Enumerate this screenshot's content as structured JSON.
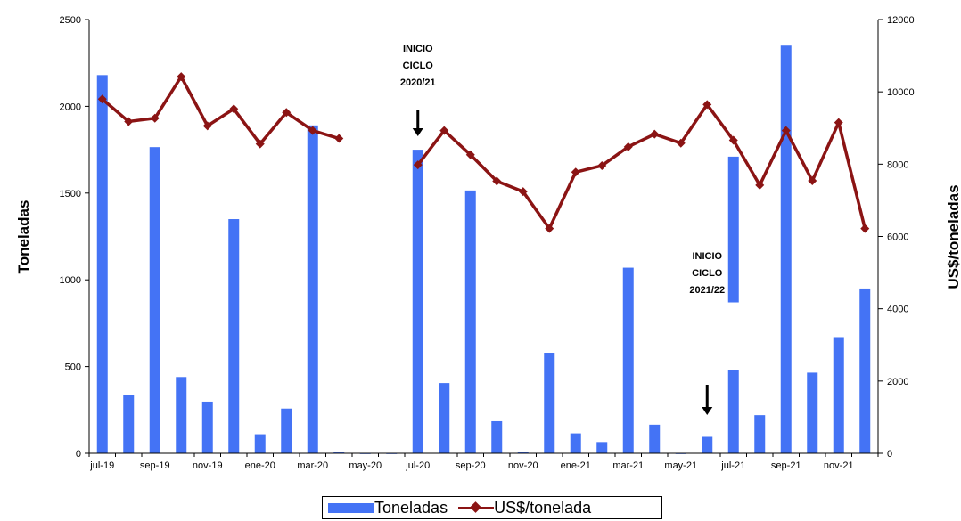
{
  "chart_data": {
    "type": "bar",
    "categories": [
      "jul-19",
      "ago-19",
      "sep-19",
      "oct-19",
      "nov-19",
      "dic-19",
      "ene-20",
      "feb-20",
      "mar-20",
      "abr-20",
      "may-20",
      "jun-20",
      "jul-20",
      "ago-20",
      "sep-20",
      "oct-20",
      "nov-20",
      "dic-20",
      "ene-21",
      "feb-21",
      "mar-21",
      "abr-21",
      "may-21",
      "jun-21",
      "jul-21",
      "ago-21",
      "sep-21",
      "oct-21",
      "nov-21",
      "dic-21"
    ],
    "x_tick_labels": [
      "jul-19",
      "sep-19",
      "nov-19",
      "ene-20",
      "mar-20",
      "may-20",
      "jul-20",
      "sep-20",
      "nov-20",
      "ene-21",
      "mar-21",
      "may-21",
      "jul-21",
      "sep-21",
      "nov-21"
    ],
    "series": [
      {
        "name": "Toneladas",
        "type": "bar",
        "axis": "left",
        "color": "#4473f5",
        "values": [
          2180,
          335,
          1765,
          440,
          298,
          1350,
          110,
          258,
          1890,
          5,
          0,
          0,
          1750,
          405,
          1515,
          185,
          10,
          580,
          115,
          65,
          1070,
          165,
          0,
          95,
          480,
          220,
          2350,
          465,
          670,
          950
        ],
        "floating_segment": {
          "category": "jul-21",
          "from": 870,
          "to": 1710
        }
      },
      {
        "name": "US$/tonelada",
        "type": "line",
        "axis": "right",
        "color": "#8b1414",
        "values": [
          9800,
          9180,
          9270,
          10420,
          9060,
          9530,
          8560,
          9430,
          8930,
          8710,
          null,
          null,
          7980,
          8930,
          8260,
          7530,
          7240,
          6220,
          7780,
          7960,
          8480,
          8830,
          8580,
          9650,
          8660,
          7420,
          8930,
          7540,
          9150,
          6220
        ]
      }
    ],
    "y_left": {
      "label": "Toneladas",
      "ylim": [
        0,
        2500
      ],
      "ticks": [
        0,
        500,
        1000,
        1500,
        2000,
        2500
      ]
    },
    "y_right": {
      "label": "US$/toneladas",
      "ylim": [
        0,
        12000
      ],
      "ticks": [
        0,
        2000,
        4000,
        6000,
        8000,
        10000,
        12000
      ]
    },
    "annotations": [
      {
        "lines": [
          "INICIO",
          "CICLO",
          "2020/21"
        ],
        "category": "jul-20"
      },
      {
        "lines": [
          "INICIO",
          "CICLO",
          "2021/22"
        ],
        "category": "jun-21"
      }
    ],
    "legend": {
      "placement": "bottom",
      "items": [
        "Toneladas",
        "US$/tonelada"
      ]
    },
    "grid": false
  }
}
